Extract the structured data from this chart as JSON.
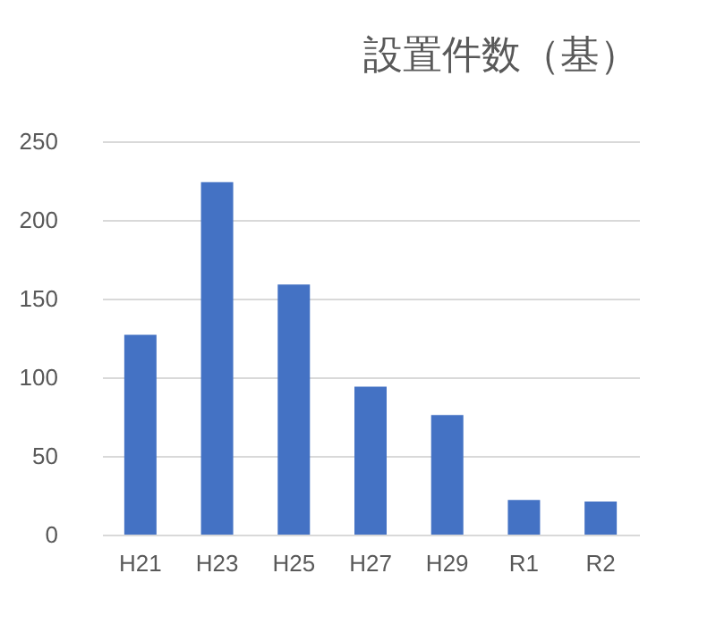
{
  "chart_data": {
    "type": "bar",
    "title": "設置件数（基）",
    "categories": [
      "H21",
      "H23",
      "H25",
      "H27",
      "H29",
      "R1",
      "R2"
    ],
    "values": [
      127,
      224,
      159,
      94,
      76,
      22,
      21
    ],
    "color": "#4472c4",
    "ylim": [
      0,
      250
    ],
    "yticks": [
      0,
      50,
      100,
      150,
      200,
      250
    ],
    "grid": "y"
  }
}
